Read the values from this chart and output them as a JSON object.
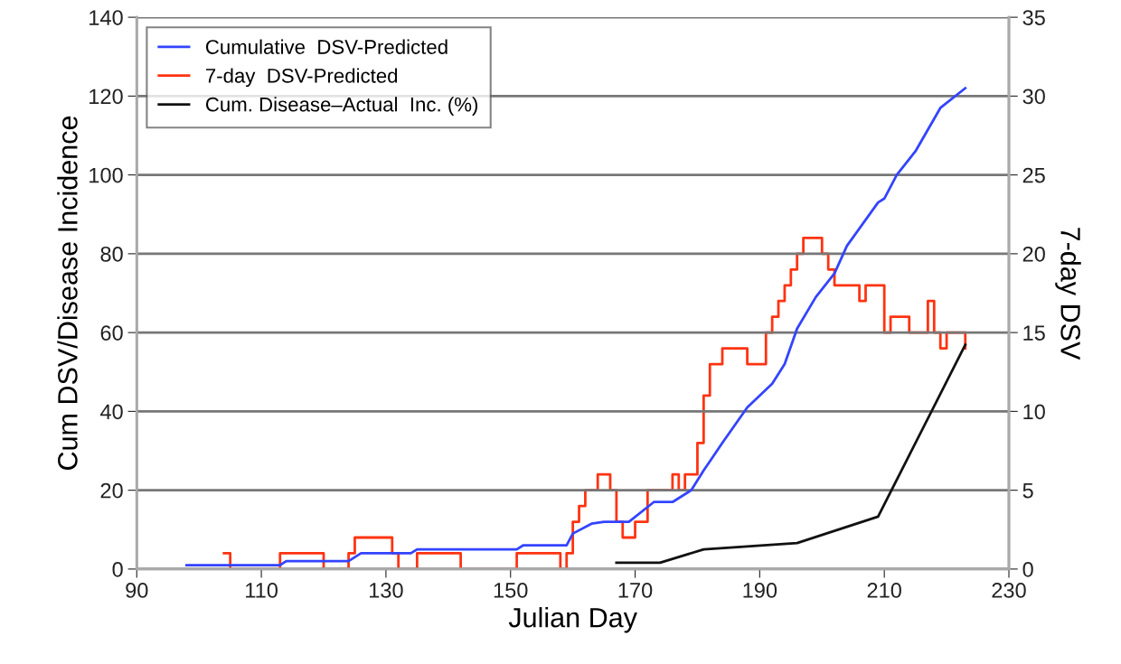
{
  "chart_data": {
    "type": "line",
    "xlabel": "Julian Day",
    "ylabel": "Cum DSV/Disease Incidence",
    "y2label": "7-day DSV",
    "xlim": [
      90,
      230
    ],
    "xticks": [
      90,
      110,
      130,
      150,
      170,
      190,
      210,
      230
    ],
    "ylim": [
      0,
      140
    ],
    "yticks": [
      0,
      20,
      40,
      60,
      80,
      100,
      120,
      140
    ],
    "y2lim": [
      0,
      35
    ],
    "y2ticks": [
      0,
      5,
      10,
      15,
      20,
      25,
      30,
      35
    ],
    "grid": "y",
    "legend": "top left",
    "line_style": "solid",
    "marker": "none",
    "series": [
      {
        "name": "Cumulative  DSV-Predicted",
        "color": "#3344ff",
        "x": [
          98,
          113,
          114,
          124,
          126,
          134,
          135,
          151,
          152,
          159,
          160,
          163,
          165,
          169,
          173,
          176,
          179,
          181,
          184,
          188,
          192,
          194,
          196,
          199,
          202,
          204,
          209,
          210,
          212,
          215,
          219,
          223
        ],
        "values": [
          1,
          1,
          2,
          2,
          4,
          4,
          5,
          5,
          6,
          6,
          9,
          11.5,
          12,
          12,
          17,
          17,
          20,
          25,
          32,
          41,
          47,
          52,
          61,
          69,
          75,
          82,
          93,
          94,
          100,
          106,
          117,
          122
        ]
      },
      {
        "name": "7-day  DSV-Predicted",
        "color": "#ff3311",
        "type": "step",
        "axis": "y2",
        "x": [
          104,
          105,
          113,
          120,
          124,
          125,
          131,
          132,
          135,
          142,
          151,
          158,
          159,
          160,
          161,
          162,
          164,
          166,
          167,
          168,
          170,
          172,
          176,
          177,
          178,
          180,
          181,
          182,
          184,
          188,
          191,
          192,
          193,
          194,
          195,
          196,
          197,
          200,
          201,
          202,
          206,
          207,
          210,
          211,
          214,
          217,
          218,
          219,
          220,
          223
        ],
        "values": [
          1,
          0,
          1,
          0,
          1,
          2,
          1,
          0,
          1,
          0,
          1,
          0,
          1,
          3,
          4,
          5,
          6,
          5,
          3,
          2,
          3,
          5,
          6,
          5,
          6,
          8,
          11,
          13,
          14,
          13,
          15,
          16,
          17,
          18,
          19,
          20,
          21,
          20,
          19,
          18,
          17,
          18,
          15,
          16,
          15,
          17,
          15,
          14,
          15,
          14
        ]
      },
      {
        "name": "Cum. Disease–Actual  Inc. (%)",
        "color": "#111111",
        "x": [
          167,
          174,
          181,
          196,
          209,
          223
        ],
        "values": [
          1.6,
          1.6,
          5,
          6.6,
          13.3,
          56.9
        ]
      }
    ]
  }
}
